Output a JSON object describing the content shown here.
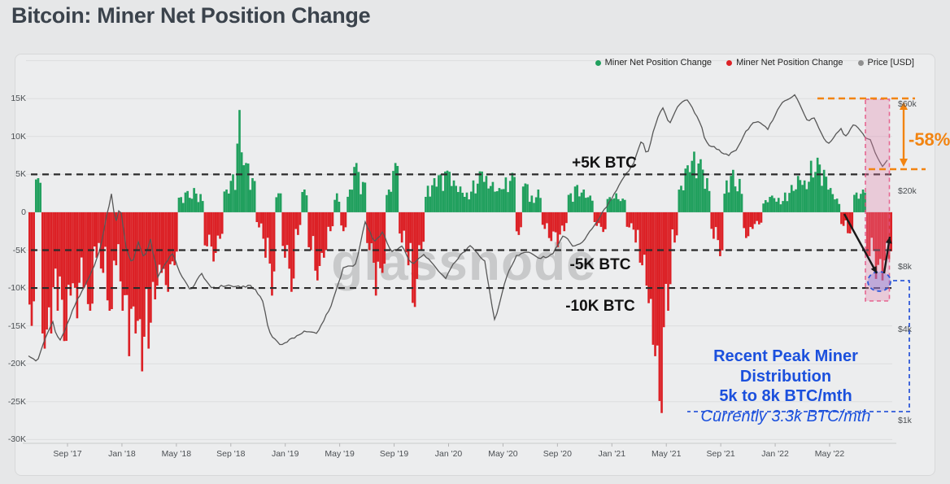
{
  "page": {
    "title": "Bitcoin: Miner Net Position Change"
  },
  "watermark": "glassnode",
  "legend": [
    {
      "label": "Miner Net Position Change",
      "color": "#21a05e"
    },
    {
      "label": "Miner Net Position Change",
      "color": "#dc2126"
    },
    {
      "label": "Price [USD]",
      "color": "#8f8f8f"
    }
  ],
  "annotations": {
    "plus5k": "+5K BTC",
    "minus5k": "-5K BTC",
    "minus10k": "-10K BTC",
    "drop_pct": "-58%",
    "callout_line1": "Recent Peak Miner Distribution",
    "callout_line2": "5k to 8k BTC/mth",
    "callout_line3": "Currently 3.3k BTC/mth"
  },
  "colors": {
    "positive_bar": "#21a05e",
    "negative_bar": "#dc2126",
    "price_line": "#575757",
    "reference_dash": "#2b2b2b",
    "orange_accent": "#f28411",
    "blue_accent": "#2f59d9",
    "highlight_band_fill": "rgba(228,128,170,0.32)",
    "highlight_band_border": "rgba(229,82,130,0.85)",
    "circle_fill": "rgba(124,116,217,0.38)",
    "watermark": "#c8c9ca"
  },
  "chart_data": {
    "type": "bar+line (dual axis)",
    "title": "Bitcoin: Miner Net Position Change",
    "left_axis_unit": "K BTC (miner net position change)",
    "right_axis_unit": "USD (log scale)",
    "grid": true,
    "legend_position": "top-right",
    "x_tick_labels": [
      "Sep '17",
      "Jan '18",
      "May '18",
      "Sep '18",
      "Jan '19",
      "May '19",
      "Sep '19",
      "Jan '20",
      "May '20",
      "Sep '20",
      "Jan '21",
      "May '21",
      "Sep '21",
      "Jan '22",
      "May '22"
    ],
    "y_left_tick_labels": [
      "15K",
      "10K",
      "5K",
      "0",
      "-5K",
      "-10K",
      "-15K",
      "-20K",
      "-25K",
      "-30K"
    ],
    "y_left_tick_values": [
      15,
      10,
      5,
      0,
      -5,
      -10,
      -15,
      -20,
      -25,
      -30
    ],
    "ylim_left": [
      -30.5,
      20.5
    ],
    "y_right_ticks": [
      {
        "label": "$60k",
        "value": 60
      },
      {
        "label": "$20k",
        "value": 20
      },
      {
        "label": "$8k",
        "value": 8
      },
      {
        "label": "$4k",
        "value": 4
      },
      {
        "label": "$1k",
        "value": 1
      }
    ],
    "reference_lines": [
      {
        "label": "+5K BTC",
        "value": 5
      },
      {
        "label": "-5K BTC",
        "value": -5
      },
      {
        "label": "-10K BTC",
        "value": -10
      }
    ],
    "bar_series": {
      "name": "Miner Net Position Change",
      "unit": "thousand BTC per month (approx., ~biweekly samples Jun 2017 - Jun 2022)",
      "values": [
        -15,
        4.5,
        -18,
        -16,
        -13,
        -17,
        -11,
        -14,
        -10,
        -13,
        -6,
        -8,
        -13,
        -7,
        -13,
        -19,
        -16,
        -21,
        -18,
        -11.5,
        -8,
        -10.5,
        -7,
        2,
        2.8,
        3.2,
        2.4,
        -4.5,
        -6.5,
        -3.5,
        3,
        5,
        13.5,
        6.5,
        4.5,
        -2,
        -6,
        -11,
        2.5,
        -6,
        -10.5,
        -3,
        3,
        -5,
        -9,
        -6,
        -2.5,
        2.5,
        -2.5,
        3,
        6.5,
        4,
        -5,
        -11,
        -8,
        3,
        6.5,
        -4,
        -7,
        -12.5,
        -5,
        3.5,
        4.5,
        5,
        5.5,
        4.2,
        3.4,
        2.6,
        4.2,
        5.4,
        4.8,
        4,
        3.2,
        4.6,
        5.2,
        -3,
        3.8,
        2.2,
        3,
        -2.2,
        -3.8,
        -4.6,
        -2.5,
        2.5,
        3.6,
        3,
        2.2,
        -1.8,
        -2.6,
        2,
        2.5,
        1.8,
        -2,
        -4,
        -7,
        -12,
        -19,
        -26.5,
        -13,
        -4,
        3.5,
        6.2,
        8,
        7,
        4.5,
        -3.5,
        -5.8,
        4.2,
        5.6,
        4.4,
        -3.4,
        -2.2,
        -1.6,
        1.6,
        2.2,
        1.9,
        2.6,
        3.6,
        4.8,
        4.2,
        6.8,
        7.2,
        5.6,
        3.2,
        1.8,
        -1.8,
        -2.8,
        2.6,
        3,
        -5.8,
        -8.8,
        -9,
        -6.2
      ]
    },
    "price_series": {
      "name": "Price [USD]",
      "unit": "points are [fraction of x-range, price in $k]",
      "points": [
        [
          0.0,
          2.7
        ],
        [
          0.01,
          2.45
        ],
        [
          0.02,
          3.6
        ],
        [
          0.028,
          4.35
        ],
        [
          0.036,
          3.3
        ],
        [
          0.046,
          4.4
        ],
        [
          0.058,
          5.7
        ],
        [
          0.07,
          7.0
        ],
        [
          0.082,
          9.5
        ],
        [
          0.09,
          14.5
        ],
        [
          0.096,
          19.2
        ],
        [
          0.101,
          13.5
        ],
        [
          0.106,
          16.8
        ],
        [
          0.113,
          10.2
        ],
        [
          0.12,
          8.2
        ],
        [
          0.127,
          10.8
        ],
        [
          0.134,
          8.7
        ],
        [
          0.141,
          11.2
        ],
        [
          0.15,
          7.1
        ],
        [
          0.158,
          8.3
        ],
        [
          0.166,
          9.5
        ],
        [
          0.176,
          7.4
        ],
        [
          0.188,
          6.2
        ],
        [
          0.2,
          7.4
        ],
        [
          0.213,
          6.3
        ],
        [
          0.228,
          6.5
        ],
        [
          0.243,
          6.4
        ],
        [
          0.258,
          6.5
        ],
        [
          0.27,
          5.7
        ],
        [
          0.28,
          3.7
        ],
        [
          0.292,
          3.15
        ],
        [
          0.306,
          3.5
        ],
        [
          0.32,
          3.9
        ],
        [
          0.334,
          3.75
        ],
        [
          0.35,
          5.2
        ],
        [
          0.365,
          8.0
        ],
        [
          0.378,
          8.0
        ],
        [
          0.39,
          13.8
        ],
        [
          0.4,
          10.8
        ],
        [
          0.41,
          12.2
        ],
        [
          0.42,
          9.5
        ],
        [
          0.432,
          10.3
        ],
        [
          0.445,
          8.1
        ],
        [
          0.457,
          9.4
        ],
        [
          0.47,
          8.0
        ],
        [
          0.483,
          7.1
        ],
        [
          0.497,
          8.9
        ],
        [
          0.512,
          10.3
        ],
        [
          0.528,
          8.6
        ],
        [
          0.54,
          4.3
        ],
        [
          0.552,
          6.9
        ],
        [
          0.565,
          9.2
        ],
        [
          0.578,
          9.7
        ],
        [
          0.592,
          8.9
        ],
        [
          0.606,
          9.2
        ],
        [
          0.62,
          11.8
        ],
        [
          0.63,
          10.2
        ],
        [
          0.642,
          10.7
        ],
        [
          0.654,
          13.1
        ],
        [
          0.666,
          15.7
        ],
        [
          0.678,
          19.4
        ],
        [
          0.69,
          24.0
        ],
        [
          0.702,
          29.5
        ],
        [
          0.71,
          38.5
        ],
        [
          0.716,
          31.0
        ],
        [
          0.726,
          47.0
        ],
        [
          0.734,
          57.5
        ],
        [
          0.742,
          46.5
        ],
        [
          0.752,
          58.5
        ],
        [
          0.762,
          63.5
        ],
        [
          0.77,
          55.5
        ],
        [
          0.778,
          47.0
        ],
        [
          0.784,
          37.0
        ],
        [
          0.792,
          35.0
        ],
        [
          0.8,
          33.5
        ],
        [
          0.81,
          31.2
        ],
        [
          0.82,
          34.0
        ],
        [
          0.83,
          42.0
        ],
        [
          0.84,
          48.5
        ],
        [
          0.848,
          47.0
        ],
        [
          0.856,
          43.5
        ],
        [
          0.866,
          54.5
        ],
        [
          0.874,
          62.0
        ],
        [
          0.882,
          64.5
        ],
        [
          0.888,
          67.5
        ],
        [
          0.895,
          56.5
        ],
        [
          0.902,
          48.5
        ],
        [
          0.91,
          50.5
        ],
        [
          0.918,
          41.5
        ],
        [
          0.925,
          36.5
        ],
        [
          0.932,
          39.0
        ],
        [
          0.94,
          44.0
        ],
        [
          0.947,
          39.5
        ],
        [
          0.954,
          46.5
        ],
        [
          0.961,
          44.5
        ],
        [
          0.968,
          39.5
        ],
        [
          0.975,
          38.0
        ],
        [
          0.981,
          31.5
        ],
        [
          0.986,
          29.0
        ],
        [
          0.99,
          26.9
        ],
        [
          0.994,
          30.0
        ],
        [
          0.9965,
          29.5
        ]
      ]
    },
    "highlight": {
      "band_label": "recent distribution window (pink band)",
      "price_drop_pct": "-58%",
      "circled_value_note": "Currently 3.3k BTC/mth"
    }
  }
}
